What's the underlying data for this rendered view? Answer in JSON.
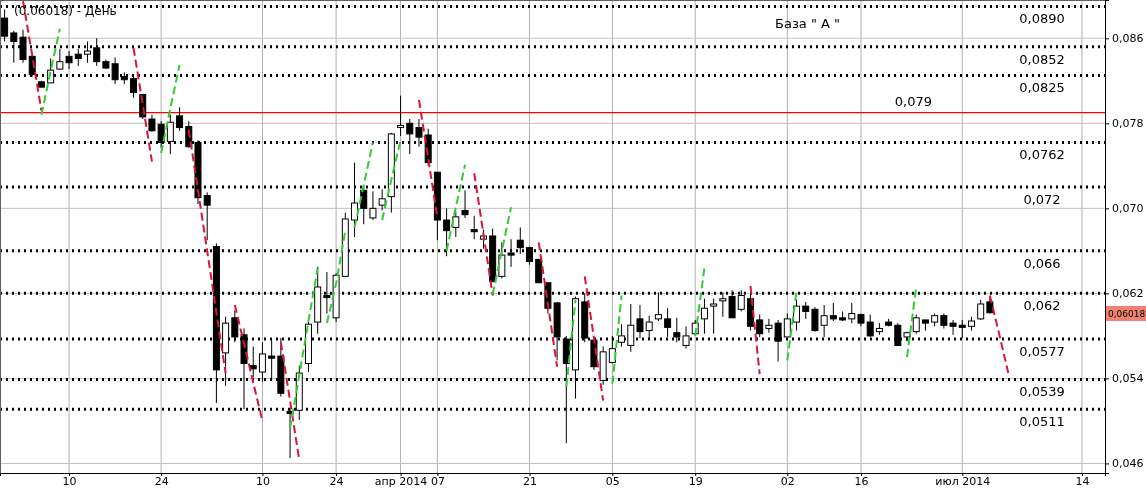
{
  "chart_data": {
    "type": "candlestick",
    "title": "(0.06018) - День",
    "color": "#000000",
    "categories": [
      null,
      null,
      null,
      null,
      null,
      null,
      null,
      "10",
      null,
      null,
      null,
      null,
      null,
      null,
      null,
      null,
      null,
      "24",
      null,
      null,
      null,
      null,
      null,
      null,
      null,
      null,
      null,
      null,
      "10",
      null,
      null,
      null,
      null,
      null,
      null,
      null,
      "24",
      null,
      null,
      null,
      null,
      null,
      null,
      "апр 2014",
      null,
      null,
      null,
      "07",
      null,
      null,
      null,
      null,
      null,
      null,
      null,
      null,
      null,
      "21",
      null,
      null,
      null,
      null,
      null,
      null,
      null,
      null,
      "05",
      null,
      null,
      null,
      null,
      null,
      null,
      null,
      null,
      "19",
      null,
      null,
      null,
      null,
      null,
      null,
      null,
      null,
      null,
      "02",
      null,
      null,
      null,
      null,
      null,
      null,
      null,
      "16",
      null,
      null,
      null,
      null,
      null,
      null,
      null,
      null,
      null,
      null,
      "июл 2014",
      null,
      null,
      null,
      null,
      null,
      null,
      null,
      null,
      null,
      null,
      null,
      null,
      "14",
      null,
      null
    ],
    "ohlc": [
      [
        0.0879,
        0.0887,
        0.0857,
        0.0862
      ],
      [
        0.0865,
        0.0867,
        0.0837,
        0.0857
      ],
      [
        0.0861,
        0.0868,
        0.0837,
        0.084
      ],
      [
        0.0843,
        0.0845,
        0.0824,
        0.0826
      ],
      [
        0.0819,
        0.082,
        0.0814,
        0.0814
      ],
      [
        0.0818,
        0.0841,
        0.0818,
        0.083
      ],
      [
        0.0831,
        0.085,
        0.083,
        0.0838
      ],
      [
        0.0843,
        0.0848,
        0.0831,
        0.0837
      ],
      [
        0.0845,
        0.085,
        0.0834,
        0.0841
      ],
      [
        0.0845,
        0.0857,
        0.0837,
        0.0848
      ],
      [
        0.0851,
        0.086,
        0.0834,
        0.0838
      ],
      [
        0.0838,
        0.084,
        0.0831,
        0.0832
      ],
      [
        0.0836,
        0.0842,
        0.0817,
        0.0821
      ],
      [
        0.0824,
        0.0828,
        0.0817,
        0.0821
      ],
      [
        0.0822,
        0.0826,
        0.0804,
        0.0809
      ],
      [
        0.0807,
        0.0807,
        0.0784,
        0.0786
      ],
      [
        0.0784,
        0.0788,
        0.0772,
        0.0773
      ],
      [
        0.0779,
        0.0782,
        0.0757,
        0.0762
      ],
      [
        0.0763,
        0.0788,
        0.0751,
        0.0781
      ],
      [
        0.0787,
        0.0795,
        0.0773,
        0.0776
      ],
      [
        0.0777,
        0.0782,
        0.0757,
        0.0758
      ],
      [
        0.0762,
        0.0764,
        0.0704,
        0.071
      ],
      [
        0.0712,
        0.0715,
        0.067,
        0.0703
      ],
      [
        0.0664,
        0.0667,
        0.0517,
        0.0548
      ],
      [
        0.0564,
        0.0598,
        0.0533,
        0.0592
      ],
      [
        0.0597,
        0.0604,
        0.0574,
        0.0579
      ],
      [
        0.0581,
        0.0587,
        0.0511,
        0.0554
      ],
      [
        0.0552,
        0.057,
        0.0541,
        0.0549
      ],
      [
        0.0546,
        0.0574,
        0.0537,
        0.0563
      ],
      [
        0.0561,
        0.0576,
        0.054,
        0.0559
      ],
      [
        0.0561,
        0.0578,
        0.0523,
        0.0526
      ],
      [
        0.0509,
        0.0512,
        0.0465,
        0.0507
      ],
      [
        0.051,
        0.0552,
        0.0501,
        0.0545
      ],
      [
        0.0554,
        0.0595,
        0.0546,
        0.0591
      ],
      [
        0.0593,
        0.0645,
        0.0582,
        0.0626
      ],
      [
        0.0618,
        0.064,
        0.0601,
        0.0616
      ],
      [
        0.0597,
        0.0639,
        0.0593,
        0.0637
      ],
      [
        0.0636,
        0.0696,
        0.0636,
        0.069
      ],
      [
        0.0689,
        0.0743,
        0.0673,
        0.0705
      ],
      [
        0.0717,
        0.0721,
        0.0685,
        0.07
      ],
      [
        0.0691,
        0.0716,
        0.0689,
        0.07
      ],
      [
        0.0703,
        0.0718,
        0.0698,
        0.0709
      ],
      [
        0.0711,
        0.0771,
        0.0696,
        0.077
      ],
      [
        0.0776,
        0.0806,
        0.0768,
        0.0778
      ],
      [
        0.078,
        0.0784,
        0.0751,
        0.077
      ],
      [
        0.0776,
        0.0784,
        0.0758,
        0.0767
      ],
      [
        0.0769,
        0.0775,
        0.074,
        0.0743
      ],
      [
        0.0734,
        0.0734,
        0.067,
        0.0689
      ],
      [
        0.0689,
        0.07,
        0.0655,
        0.0679
      ],
      [
        0.0682,
        0.0697,
        0.0673,
        0.0692
      ],
      [
        0.0698,
        0.0717,
        0.0691,
        0.0694
      ],
      [
        0.068,
        0.0693,
        0.0671,
        0.0678
      ],
      [
        0.0671,
        0.068,
        0.0662,
        0.0674
      ],
      [
        0.0674,
        0.0681,
        0.0631,
        0.0631
      ],
      [
        0.0636,
        0.0668,
        0.0634,
        0.0656
      ],
      [
        0.0658,
        0.0671,
        0.0645,
        0.0656
      ],
      [
        0.067,
        0.0682,
        0.0657,
        0.0663
      ],
      [
        0.0663,
        0.0664,
        0.0647,
        0.065
      ],
      [
        0.0652,
        0.0652,
        0.063,
        0.063
      ],
      [
        0.063,
        0.063,
        0.0601,
        0.0606
      ],
      [
        0.0611,
        0.0612,
        0.0557,
        0.0579
      ],
      [
        0.0577,
        0.058,
        0.0479,
        0.0554
      ],
      [
        0.0548,
        0.0617,
        0.0521,
        0.0615
      ],
      [
        0.0612,
        0.062,
        0.0574,
        0.0578
      ],
      [
        0.0576,
        0.0578,
        0.0548,
        0.0551
      ],
      [
        0.0538,
        0.057,
        0.0534,
        0.0565
      ],
      [
        0.0555,
        0.058,
        0.0554,
        0.0568
      ],
      [
        0.0574,
        0.0591,
        0.057,
        0.058
      ],
      [
        0.0571,
        0.061,
        0.0565,
        0.059
      ],
      [
        0.0596,
        0.0609,
        0.0578,
        0.0584
      ],
      [
        0.0585,
        0.0599,
        0.0578,
        0.0593
      ],
      [
        0.0596,
        0.0621,
        0.0594,
        0.06
      ],
      [
        0.0596,
        0.0606,
        0.0579,
        0.0588
      ],
      [
        0.0583,
        0.0597,
        0.0574,
        0.0579
      ],
      [
        0.0571,
        0.0589,
        0.0568,
        0.058
      ],
      [
        0.0582,
        0.0595,
        0.0581,
        0.0592
      ],
      [
        0.0596,
        0.0615,
        0.0582,
        0.0606
      ],
      [
        0.0608,
        0.0615,
        0.0582,
        0.061
      ],
      [
        0.0613,
        0.0621,
        0.0598,
        0.0615
      ],
      [
        0.0617,
        0.0623,
        0.0597,
        0.0597
      ],
      [
        0.0605,
        0.0623,
        0.0603,
        0.0618
      ],
      [
        0.0615,
        0.0619,
        0.0585,
        0.0589
      ],
      [
        0.0595,
        0.06,
        0.0579,
        0.0582
      ],
      [
        0.0587,
        0.0596,
        0.0583,
        0.059
      ],
      [
        0.0592,
        0.0595,
        0.0556,
        0.0575
      ],
      [
        0.0579,
        0.0601,
        0.0579,
        0.0596
      ],
      [
        0.0593,
        0.0614,
        0.0585,
        0.0608
      ],
      [
        0.0608,
        0.0612,
        0.0596,
        0.0603
      ],
      [
        0.0605,
        0.0607,
        0.0584,
        0.0585
      ],
      [
        0.059,
        0.0609,
        0.0579,
        0.0599
      ],
      [
        0.0599,
        0.0611,
        0.0594,
        0.0596
      ],
      [
        0.0597,
        0.0603,
        0.0594,
        0.0595
      ],
      [
        0.0596,
        0.0611,
        0.0592,
        0.0601
      ],
      [
        0.06,
        0.0601,
        0.0589,
        0.0592
      ],
      [
        0.0593,
        0.06,
        0.0579,
        0.058
      ],
      [
        0.0584,
        0.0592,
        0.0581,
        0.0587
      ],
      [
        0.0593,
        0.0596,
        0.0589,
        0.059
      ],
      [
        0.059,
        0.0592,
        0.0571,
        0.0571
      ],
      [
        0.0579,
        0.0584,
        0.0575,
        0.0583
      ],
      [
        0.0584,
        0.06,
        0.0582,
        0.0597
      ],
      [
        0.0595,
        0.0595,
        0.0585,
        0.0592
      ],
      [
        0.0593,
        0.0601,
        0.0589,
        0.0599
      ],
      [
        0.0599,
        0.0601,
        0.0587,
        0.059
      ],
      [
        0.0592,
        0.0595,
        0.0581,
        0.0589
      ],
      [
        0.059,
        0.0595,
        0.0578,
        0.0588
      ],
      [
        0.0589,
        0.0598,
        0.0585,
        0.0594
      ],
      [
        0.0596,
        0.0614,
        0.0595,
        0.061
      ],
      [
        0.0612,
        0.0617,
        0.0601,
        0.06018
      ],
      null,
      null,
      null,
      null,
      null,
      null,
      null,
      null,
      null,
      null,
      null,
      null
    ],
    "series": [
      {
        "type": "line",
        "color": "#dc143c",
        "line_style": "dashed",
        "values": [
          null,
          null,
          0.0895,
          0.0844,
          0.0792,
          null,
          null,
          null,
          null,
          null,
          null,
          null,
          null,
          null,
          null,
          null,
          null,
          null,
          null,
          null,
          0.0774,
          0.0717,
          0.066,
          0.0602,
          0.0545,
          null,
          null,
          null,
          null,
          null,
          0.0574,
          0.0519,
          0.0463,
          null,
          null,
          null,
          null,
          null,
          null,
          null,
          null,
          null,
          null,
          null,
          null,
          null,
          null,
          null,
          null,
          null,
          null,
          0.0733,
          0.0676,
          0.0618,
          null,
          null,
          null,
          null,
          null,
          null,
          null,
          null,
          null,
          0.0636,
          0.0578,
          0.0519,
          null,
          null,
          null,
          null,
          null,
          null,
          null,
          null,
          null,
          null,
          null,
          null,
          null,
          null,
          null,
          null,
          null,
          null,
          null,
          null,
          null,
          null,
          null,
          null,
          null,
          null,
          null,
          null,
          null,
          null,
          null,
          null,
          null,
          null,
          null,
          null,
          null,
          null,
          null,
          null,
          null,
          0.0618,
          0.0582,
          0.0545,
          null,
          null,
          null,
          null,
          null,
          null,
          null,
          null,
          null,
          null
        ]
      },
      {
        "type": "line",
        "color": "#dc143c",
        "line_style": "dashed",
        "values": [
          null,
          null,
          null,
          null,
          null,
          null,
          null,
          null,
          null,
          null,
          null,
          null,
          null,
          null,
          0.0851,
          0.0798,
          0.0744,
          null,
          null,
          null,
          null,
          null,
          null,
          null,
          null,
          0.0609,
          0.0573,
          0.0536,
          0.05,
          null,
          null,
          null,
          null,
          null,
          null,
          null,
          null,
          null,
          null,
          null,
          null,
          null,
          null,
          null,
          null,
          0.0802,
          0.0747,
          0.0691,
          null,
          null,
          null,
          null,
          null,
          null,
          null,
          null,
          null,
          null,
          0.0668,
          0.061,
          0.0551,
          null,
          null,
          null,
          null,
          null,
          null,
          null,
          null,
          null,
          null,
          null,
          null,
          null,
          null,
          null,
          null,
          null,
          null,
          null,
          null,
          0.0627,
          0.0544,
          null,
          null,
          null,
          null,
          null,
          null,
          null,
          null,
          null,
          null,
          null,
          null,
          null,
          null,
          null,
          null,
          null,
          null,
          null,
          null,
          null,
          null,
          null,
          null,
          null,
          null,
          null,
          null,
          null,
          null,
          null,
          null,
          null,
          null,
          null,
          null,
          null
        ]
      },
      {
        "type": "line",
        "color": "#32cd32",
        "line_style": "dashed",
        "values": [
          null,
          null,
          null,
          null,
          0.0788,
          0.0829,
          0.0869,
          null,
          null,
          null,
          null,
          null,
          null,
          null,
          null,
          null,
          null,
          null,
          null,
          null,
          null,
          null,
          null,
          null,
          null,
          null,
          null,
          null,
          null,
          null,
          null,
          0.0493,
          0.0543,
          0.0594,
          0.0644,
          null,
          null,
          null,
          0.0682,
          0.0722,
          0.0762,
          null,
          null,
          null,
          null,
          null,
          null,
          null,
          0.066,
          0.0701,
          0.0741,
          null,
          null,
          null,
          null,
          null,
          null,
          null,
          null,
          null,
          null,
          0.0532,
          0.0614,
          null,
          null,
          null,
          null,
          null,
          null,
          null,
          null,
          null,
          null,
          null,
          null,
          0.058,
          0.0644,
          null,
          null,
          null,
          null,
          null,
          null,
          null,
          null,
          null,
          null,
          null,
          null,
          null,
          null,
          null,
          null,
          null,
          null,
          null,
          null,
          null,
          0.056,
          0.0626,
          null,
          null,
          null,
          null,
          null,
          null,
          null,
          null,
          null,
          null,
          null,
          null,
          null,
          null,
          null,
          null,
          null,
          null,
          null,
          null
        ]
      },
      {
        "type": "line",
        "color": "#32cd32",
        "line_style": "dashed",
        "values": [
          null,
          null,
          null,
          null,
          null,
          null,
          null,
          null,
          null,
          null,
          null,
          null,
          null,
          null,
          null,
          null,
          null,
          0.0752,
          0.0794,
          0.0835,
          null,
          null,
          null,
          null,
          null,
          null,
          null,
          null,
          null,
          null,
          null,
          null,
          null,
          null,
          null,
          0.0592,
          0.0629,
          0.0679,
          null,
          null,
          null,
          0.0689,
          0.0727,
          0.0764,
          null,
          null,
          null,
          null,
          null,
          null,
          null,
          null,
          null,
          0.0619,
          0.066,
          0.0701,
          null,
          null,
          null,
          null,
          null,
          null,
          null,
          null,
          null,
          null,
          0.0535,
          0.0618,
          null,
          null,
          null,
          null,
          null,
          null,
          null,
          null,
          null,
          null,
          null,
          null,
          null,
          null,
          null,
          null,
          null,
          0.0557,
          0.0622,
          null,
          null,
          null,
          null,
          null,
          null,
          null,
          null,
          null,
          null,
          null,
          null,
          null,
          null,
          null,
          null,
          null,
          null,
          null,
          null,
          null,
          null,
          null,
          null,
          null,
          null,
          null,
          null,
          null,
          null,
          null,
          null,
          null
        ]
      }
    ],
    "ylim": [
      0.0451,
      0.0896
    ],
    "yticks": [
      {
        "value": 0.046,
        "label": "0,046"
      },
      {
        "value": 0.054,
        "label": "0,054"
      },
      {
        "value": 0.062,
        "label": "0,062"
      },
      {
        "value": 0.07,
        "label": "0,070"
      },
      {
        "value": 0.078,
        "label": "0,078"
      },
      {
        "value": 0.086,
        "label": "0,086"
      }
    ],
    "grid": true,
    "ref_lines": [
      {
        "axis": "y",
        "value": 0.089,
        "label": "0,0890",
        "color": "#000000",
        "line_style": "dotted"
      },
      {
        "axis": "y",
        "value": 0.0852,
        "label": "0,0852",
        "color": "#000000",
        "line_style": "dotted"
      },
      {
        "axis": "y",
        "value": 0.0825,
        "label": "0,0825",
        "color": "#000000",
        "line_style": "dotted"
      },
      {
        "axis": "y",
        "value": 0.079,
        "label": "0,079",
        "color": "#ff0000",
        "line_style": "solid"
      },
      {
        "axis": "y",
        "value": 0.0762,
        "label": "0,0762",
        "color": "#000000",
        "line_style": "dotted"
      },
      {
        "axis": "y",
        "value": 0.072,
        "label": "0,072",
        "color": "#000000",
        "line_style": "dotted"
      },
      {
        "axis": "y",
        "value": 0.066,
        "label": "0,066",
        "color": "#000000",
        "line_style": "dotted"
      },
      {
        "axis": "y",
        "value": 0.062,
        "label": "0,062",
        "color": "#000000",
        "line_style": "dotted"
      },
      {
        "axis": "y",
        "value": 0.0577,
        "label": "0,0577",
        "color": "#000000",
        "line_style": "dotted"
      },
      {
        "axis": "y",
        "value": 0.0539,
        "label": "0,0539",
        "color": "#000000",
        "line_style": "dotted"
      },
      {
        "axis": "y",
        "value": 0.0511,
        "label": "0,0511",
        "color": "#000000",
        "line_style": "dotted"
      }
    ],
    "annotations": [
      "База \" А \"",
      "0,06018"
    ]
  }
}
